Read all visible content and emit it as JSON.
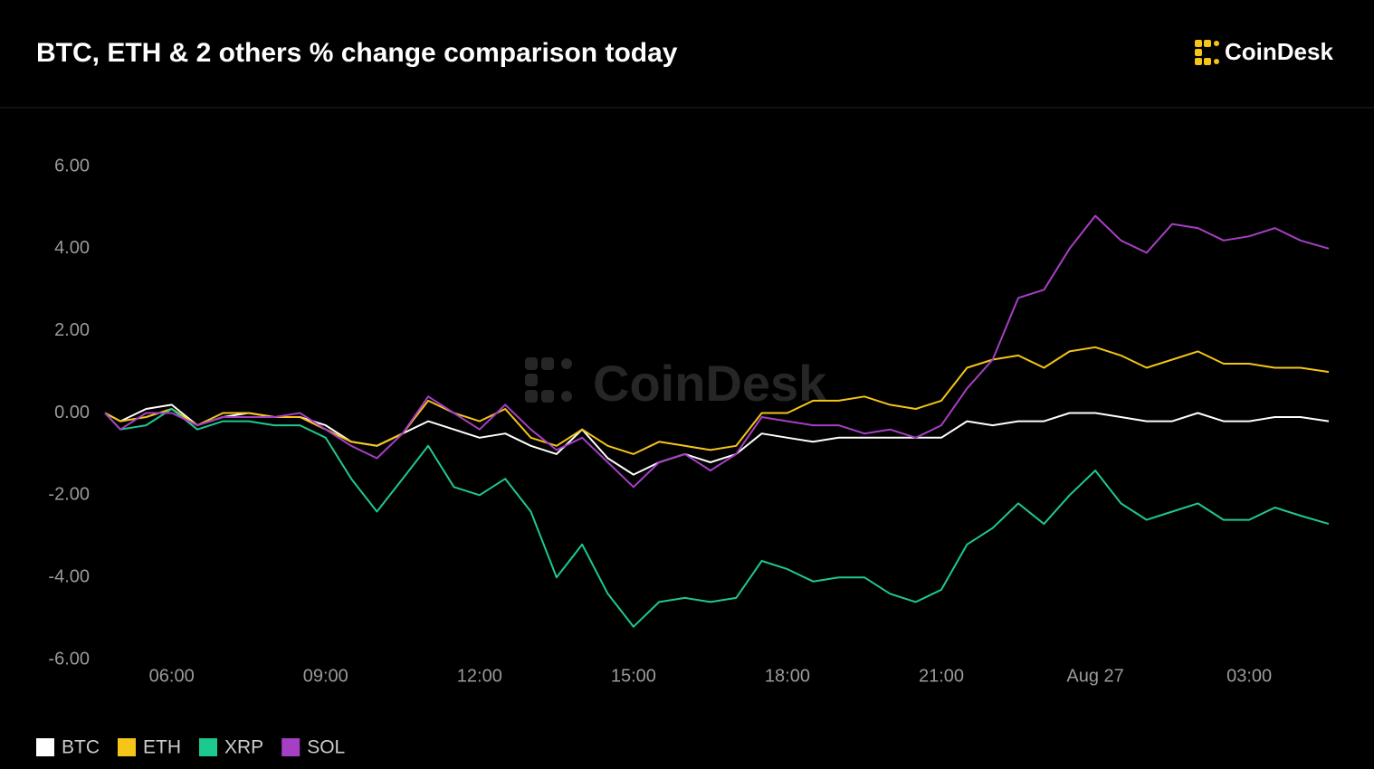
{
  "brand": "CoinDesk",
  "chart_data": {
    "type": "line",
    "title": "BTC, ETH & 2 others % change comparison today",
    "x": [
      4.7,
      5,
      5.5,
      6,
      6.5,
      7,
      7.5,
      8,
      8.5,
      9,
      9.5,
      10,
      10.5,
      11,
      11.5,
      12,
      12.5,
      13,
      13.5,
      14,
      14.5,
      15,
      15.5,
      16,
      16.5,
      17,
      17.5,
      18,
      18.5,
      19,
      19.5,
      20,
      20.5,
      21,
      21.5,
      22,
      22.5,
      23,
      23.5,
      24,
      24.5,
      25,
      25.5,
      26,
      26.5,
      27,
      27.5,
      28,
      28.55
    ],
    "series": [
      {
        "name": "BTC",
        "color": "#ffffff",
        "values": [
          0,
          -0.2,
          0.1,
          0.2,
          -0.3,
          -0.1,
          0,
          -0.1,
          -0.1,
          -0.3,
          -0.7,
          -0.8,
          -0.5,
          -0.2,
          -0.4,
          -0.6,
          -0.5,
          -0.8,
          -1.0,
          -0.4,
          -1.1,
          -1.5,
          -1.2,
          -1.0,
          -1.2,
          -1.0,
          -0.5,
          -0.6,
          -0.7,
          -0.6,
          -0.6,
          -0.6,
          -0.6,
          -0.6,
          -0.2,
          -0.3,
          -0.2,
          -0.2,
          0,
          0,
          -0.1,
          -0.2,
          -0.2,
          0,
          -0.2,
          -0.2,
          -0.1,
          -0.1,
          -0.2
        ]
      },
      {
        "name": "ETH",
        "color": "#f5c518",
        "values": [
          0,
          -0.2,
          -0.1,
          0.1,
          -0.3,
          0,
          0,
          -0.1,
          -0.1,
          -0.4,
          -0.7,
          -0.8,
          -0.5,
          0.3,
          0,
          -0.2,
          0.1,
          -0.6,
          -0.8,
          -0.4,
          -0.8,
          -1.0,
          -0.7,
          -0.8,
          -0.9,
          -0.8,
          0,
          0,
          0.3,
          0.3,
          0.4,
          0.2,
          0.1,
          0.3,
          1.1,
          1.3,
          1.4,
          1.1,
          1.5,
          1.6,
          1.4,
          1.1,
          1.3,
          1.5,
          1.2,
          1.2,
          1.1,
          1.1,
          1.0
        ]
      },
      {
        "name": "XRP",
        "color": "#1ec98f",
        "values": [
          0,
          -0.4,
          -0.3,
          0.1,
          -0.4,
          -0.2,
          -0.2,
          -0.3,
          -0.3,
          -0.6,
          -1.6,
          -2.4,
          -1.6,
          -0.8,
          -1.8,
          -2.0,
          -1.6,
          -2.4,
          -4.0,
          -3.2,
          -4.4,
          -5.2,
          -4.6,
          -4.5,
          -4.6,
          -4.5,
          -3.6,
          -3.8,
          -4.1,
          -4.0,
          -4.0,
          -4.4,
          -4.6,
          -4.3,
          -3.2,
          -2.8,
          -2.2,
          -2.7,
          -2.0,
          -1.4,
          -2.2,
          -2.6,
          -2.4,
          -2.2,
          -2.6,
          -2.6,
          -2.3,
          -2.5,
          -2.7
        ]
      },
      {
        "name": "SOL",
        "color": "#a63fc4",
        "values": [
          0,
          -0.4,
          0,
          0,
          -0.3,
          -0.1,
          -0.1,
          -0.1,
          0,
          -0.4,
          -0.8,
          -1.1,
          -0.5,
          0.4,
          0,
          -0.4,
          0.2,
          -0.4,
          -0.9,
          -0.6,
          -1.2,
          -1.8,
          -1.2,
          -1.0,
          -1.4,
          -1.0,
          -0.1,
          -0.2,
          -0.3,
          -0.3,
          -0.5,
          -0.4,
          -0.6,
          -0.3,
          0.6,
          1.3,
          2.8,
          3.0,
          4.0,
          4.8,
          4.2,
          3.9,
          4.6,
          4.5,
          4.2,
          4.3,
          4.5,
          4.2,
          4.0
        ]
      }
    ],
    "xlim": [
      4.7,
      28.55
    ],
    "xticks": [
      {
        "value": 6,
        "label": "06:00"
      },
      {
        "value": 9,
        "label": "09:00"
      },
      {
        "value": 12,
        "label": "12:00"
      },
      {
        "value": 15,
        "label": "15:00"
      },
      {
        "value": 18,
        "label": "18:00"
      },
      {
        "value": 21,
        "label": "21:00"
      },
      {
        "value": 24,
        "label": "Aug 27"
      },
      {
        "value": 27,
        "label": "03:00"
      }
    ],
    "ylim": [
      -6,
      6
    ],
    "yticks": [
      {
        "value": 6,
        "label": "6.00"
      },
      {
        "value": 4,
        "label": "4.00"
      },
      {
        "value": 2,
        "label": "2.00"
      },
      {
        "value": 0,
        "label": "0.00"
      },
      {
        "value": -2,
        "label": "-2.00"
      },
      {
        "value": -4,
        "label": "-4.00"
      },
      {
        "value": -6,
        "label": "-6.00"
      }
    ],
    "grid": false,
    "legend": "bottom-left"
  }
}
